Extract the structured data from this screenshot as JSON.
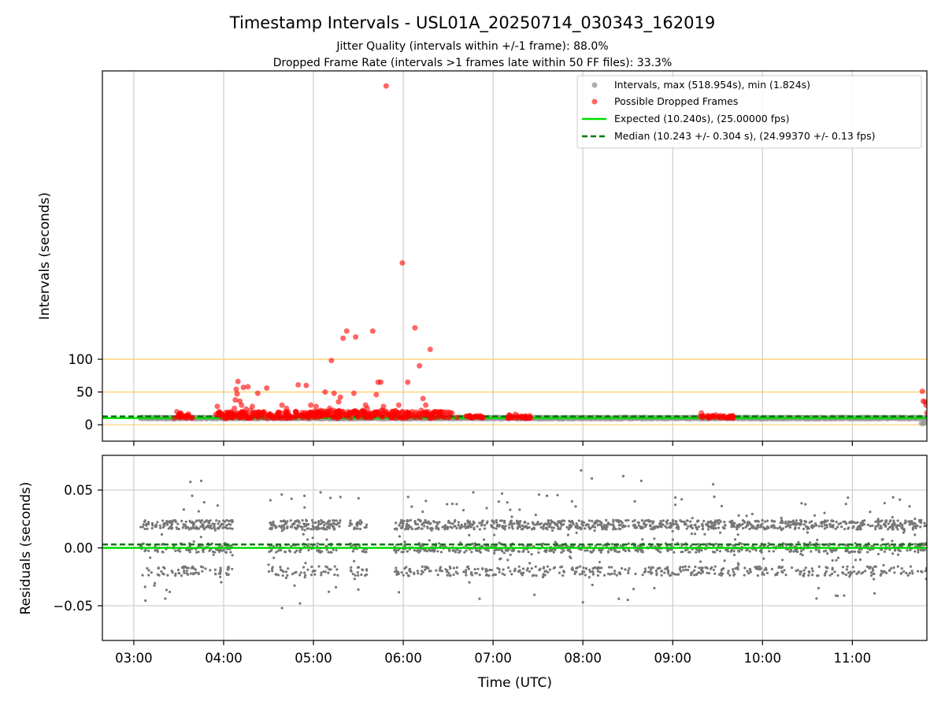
{
  "title": "Timestamp Intervals - USL01A_20250714_030343_162019",
  "subtitle_1": "Jitter Quality (intervals within +/-1 frame): 88.0%",
  "subtitle_2": "Dropped Frame Rate (intervals >1 frames late within 50 FF files): 33.3%",
  "colors": {
    "intervals": "#999999",
    "dropped": "#ff0000",
    "expected": "#00dd00",
    "median": "#007700",
    "threshold": "#ffcc66",
    "residual": "#777777",
    "grid": "#cccccc"
  },
  "chart_data": [
    {
      "type": "scatter",
      "xlabel": "",
      "ylabel": "Intervals (seconds)",
      "x_unit": "hours UTC",
      "xlim": [
        2.65,
        11.83
      ],
      "ylim": [
        -25,
        540
      ],
      "x_ticks": [
        3,
        4,
        5,
        6,
        7,
        8,
        9,
        10,
        11
      ],
      "y_ticks": [
        0,
        50,
        100
      ],
      "y_tick_labels": [
        "0",
        "50",
        "100"
      ],
      "grid": "vertical",
      "legend_position": "top-right",
      "legend": [
        "Intervals, max (518.954s), min (1.824s)",
        "Possible Dropped Frames",
        "Expected (10.240s), (25.00000 fps)",
        "Median (10.243 +/- 0.304 s), (24.99370 +/- 0.13 fps)"
      ],
      "expected": 10.24,
      "median": 10.243,
      "threshold_lines": [
        0,
        50,
        100
      ],
      "intervals": {
        "name": "Intervals, max (518.954s), min (1.824s)",
        "x_start": 3.07,
        "x_end": 11.83,
        "value": 10.24,
        "tail": [
          [
            11.77,
            2.5
          ],
          [
            11.79,
            1.824
          ],
          [
            11.81,
            4.0
          ]
        ]
      },
      "dropped_frames": {
        "name": "Possible Dropped Frames",
        "points": [
          [
            3.48,
            20
          ],
          [
            3.5,
            14
          ],
          [
            3.55,
            12
          ],
          [
            3.6,
            11
          ],
          [
            3.65,
            11
          ],
          [
            3.93,
            28
          ],
          [
            3.97,
            14
          ],
          [
            4.1,
            15
          ],
          [
            4.12,
            25
          ],
          [
            4.13,
            38
          ],
          [
            4.14,
            54
          ],
          [
            4.15,
            47
          ],
          [
            4.16,
            66
          ],
          [
            4.18,
            36
          ],
          [
            4.2,
            30
          ],
          [
            4.22,
            18
          ],
          [
            4.22,
            57
          ],
          [
            4.25,
            24
          ],
          [
            4.27,
            58
          ],
          [
            4.3,
            22
          ],
          [
            4.32,
            28
          ],
          [
            4.35,
            19
          ],
          [
            4.38,
            48
          ],
          [
            4.4,
            15
          ],
          [
            4.45,
            20
          ],
          [
            4.48,
            56
          ],
          [
            4.55,
            14
          ],
          [
            4.6,
            17
          ],
          [
            4.65,
            30
          ],
          [
            4.7,
            25
          ],
          [
            4.75,
            12
          ],
          [
            4.8,
            20
          ],
          [
            4.83,
            61
          ],
          [
            4.88,
            15
          ],
          [
            4.92,
            60
          ],
          [
            4.97,
            30
          ],
          [
            5.0,
            18
          ],
          [
            5.03,
            28
          ],
          [
            5.08,
            22
          ],
          [
            5.1,
            15
          ],
          [
            5.13,
            50
          ],
          [
            5.18,
            25
          ],
          [
            5.2,
            98
          ],
          [
            5.23,
            48
          ],
          [
            5.25,
            20
          ],
          [
            5.28,
            35
          ],
          [
            5.3,
            42
          ],
          [
            5.33,
            132
          ],
          [
            5.37,
            143
          ],
          [
            5.4,
            18
          ],
          [
            5.45,
            48
          ],
          [
            5.47,
            134
          ],
          [
            5.5,
            15
          ],
          [
            5.55,
            22
          ],
          [
            5.58,
            30
          ],
          [
            5.6,
            25
          ],
          [
            5.63,
            18
          ],
          [
            5.66,
            143
          ],
          [
            5.7,
            46
          ],
          [
            5.72,
            65
          ],
          [
            5.75,
            65
          ],
          [
            5.78,
            28
          ],
          [
            5.81,
            517
          ],
          [
            5.85,
            15
          ],
          [
            5.95,
            30
          ],
          [
            5.98,
            12
          ],
          [
            5.99,
            247
          ],
          [
            6.05,
            65
          ],
          [
            6.1,
            20
          ],
          [
            6.13,
            148
          ],
          [
            6.18,
            90
          ],
          [
            6.2,
            22
          ],
          [
            6.22,
            40
          ],
          [
            6.25,
            30
          ],
          [
            6.28,
            15
          ],
          [
            6.3,
            115
          ],
          [
            6.35,
            20
          ],
          [
            6.4,
            12
          ],
          [
            6.5,
            11
          ],
          [
            6.6,
            11
          ],
          [
            6.75,
            11
          ],
          [
            6.8,
            13
          ],
          [
            6.85,
            12
          ],
          [
            7.18,
            15
          ],
          [
            7.25,
            16
          ],
          [
            7.3,
            12
          ],
          [
            7.35,
            11
          ],
          [
            7.4,
            10
          ],
          [
            9.32,
            18
          ],
          [
            9.4,
            12
          ],
          [
            9.48,
            15
          ],
          [
            9.53,
            14
          ],
          [
            9.6,
            11
          ],
          [
            9.65,
            11
          ],
          [
            11.78,
            51
          ],
          [
            11.79,
            36
          ],
          [
            11.81,
            35
          ],
          [
            11.82,
            30
          ],
          [
            11.83,
            18
          ]
        ],
        "dense_ranges": [
          {
            "x": [
              3.45,
              3.65
            ],
            "y": [
              10,
              18
            ],
            "count": 20
          },
          {
            "x": [
              3.9,
              5.0
            ],
            "y": [
              10,
              20
            ],
            "count": 140
          },
          {
            "x": [
              5.0,
              5.5
            ],
            "y": [
              10,
              22
            ],
            "count": 80
          },
          {
            "x": [
              5.5,
              6.0
            ],
            "y": [
              10,
              22
            ],
            "count": 70
          },
          {
            "x": [
              6.0,
              6.55
            ],
            "y": [
              10,
              20
            ],
            "count": 60
          },
          {
            "x": [
              6.7,
              6.9
            ],
            "y": [
              10,
              14
            ],
            "count": 20
          },
          {
            "x": [
              7.15,
              7.42
            ],
            "y": [
              10,
              14
            ],
            "count": 25
          },
          {
            "x": [
              9.3,
              9.68
            ],
            "y": [
              10,
              14
            ],
            "count": 30
          }
        ]
      }
    },
    {
      "type": "scatter",
      "xlabel": "Time (UTC)",
      "ylabel": "Residuals (seconds)",
      "xlim": [
        2.65,
        11.83
      ],
      "ylim": [
        -0.08,
        0.08
      ],
      "x_ticks": [
        3,
        4,
        5,
        6,
        7,
        8,
        9,
        10,
        11
      ],
      "x_tick_labels": [
        "03:00",
        "04:00",
        "05:00",
        "06:00",
        "07:00",
        "08:00",
        "09:00",
        "10:00",
        "11:00"
      ],
      "y_ticks": [
        0.05,
        0.0,
        -0.05
      ],
      "y_tick_labels": [
        "0.05",
        "0.00",
        "−0.05"
      ],
      "grid": "both",
      "expected": 0.0,
      "median": 0.003,
      "residuals": {
        "levels": [
          0.02,
          0.0,
          -0.02
        ],
        "x_ranges": [
          [
            3.07,
            4.1
          ],
          [
            4.5,
            5.3
          ],
          [
            5.4,
            5.6
          ],
          [
            5.9,
            11.83
          ]
        ],
        "density_per_hour": 320,
        "spread": 0.004,
        "outliers": [
          [
            3.63,
            0.057
          ],
          [
            3.75,
            0.058
          ],
          [
            4.65,
            -0.052
          ],
          [
            4.85,
            -0.048
          ],
          [
            5.08,
            0.048
          ],
          [
            7.98,
            0.067
          ],
          [
            8.1,
            0.06
          ],
          [
            8.45,
            0.062
          ],
          [
            8.65,
            0.058
          ],
          [
            9.45,
            0.055
          ],
          [
            8.0,
            -0.047
          ],
          [
            8.4,
            -0.044
          ],
          [
            6.85,
            -0.044
          ],
          [
            3.65,
            0.045
          ],
          [
            5.3,
            0.044
          ],
          [
            4.9,
            0.045
          ],
          [
            7.1,
            0.047
          ],
          [
            8.5,
            -0.045
          ],
          [
            3.4,
            -0.038
          ],
          [
            5.25,
            -0.034
          ],
          [
            6.78,
            0.048
          ],
          [
            9.1,
            0.042
          ],
          [
            7.6,
            0.045
          ],
          [
            5.5,
            -0.036
          ]
        ]
      }
    }
  ]
}
